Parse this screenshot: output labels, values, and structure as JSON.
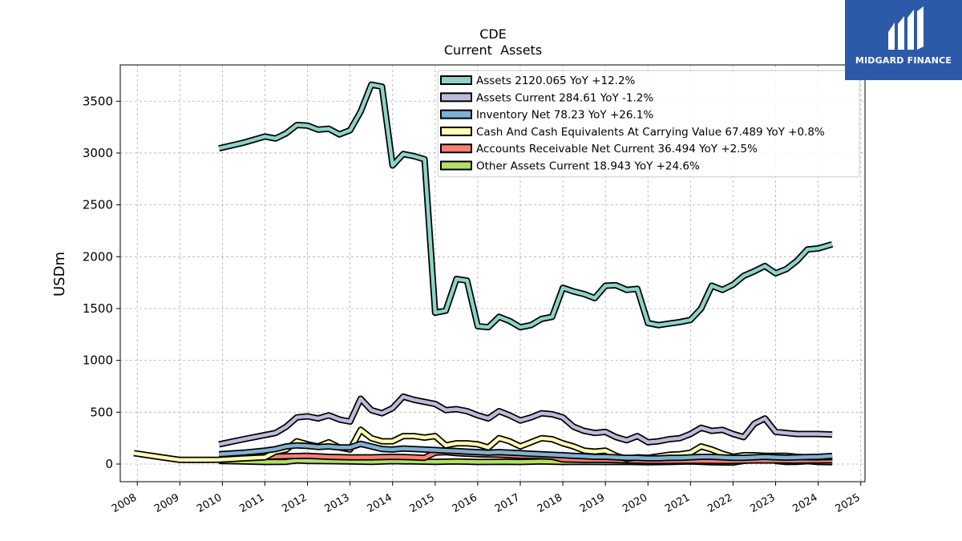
{
  "logo": {
    "text": "MIDGARD FINANCE",
    "bg": "#2c5aa8"
  },
  "chart_data": {
    "type": "line",
    "title": "CDE",
    "subtitle": "Current  Assets",
    "ylabel": "USDm",
    "xlabel": "",
    "xlim": [
      2007.6,
      2025.1
    ],
    "ylim": [
      -170,
      3850
    ],
    "x_ticks": [
      "2008",
      "2009",
      "2010",
      "2011",
      "2012",
      "2013",
      "2014",
      "2015",
      "2016",
      "2017",
      "2018",
      "2019",
      "2020",
      "2021",
      "2022",
      "2023",
      "2024",
      "2025"
    ],
    "y_ticks": [
      "0",
      "500",
      "1000",
      "1500",
      "2000",
      "2500",
      "3000",
      "3500"
    ],
    "grid": true,
    "legend_position": "top-right",
    "series": [
      {
        "name": "Assets",
        "legend": "Assets  2120.065 YoY +12.2%",
        "color": "#8dd3c7",
        "x": [
          2009.92,
          2010.5,
          2011.0,
          2011.25,
          2011.5,
          2011.75,
          2012.0,
          2012.25,
          2012.5,
          2012.75,
          2013.0,
          2013.25,
          2013.5,
          2013.75,
          2014.0,
          2014.25,
          2014.5,
          2014.75,
          2015.0,
          2015.25,
          2015.5,
          2015.75,
          2016.0,
          2016.25,
          2016.5,
          2016.75,
          2017.0,
          2017.25,
          2017.5,
          2017.75,
          2018.0,
          2018.25,
          2018.5,
          2018.75,
          2019.0,
          2019.25,
          2019.5,
          2019.75,
          2020.0,
          2020.25,
          2020.5,
          2020.75,
          2021.0,
          2021.25,
          2021.5,
          2021.75,
          2022.0,
          2022.25,
          2022.5,
          2022.75,
          2023.0,
          2023.25,
          2023.5,
          2023.75,
          2024.0,
          2024.33
        ],
        "values": [
          3045,
          3100,
          3160,
          3140,
          3190,
          3270,
          3265,
          3225,
          3235,
          3180,
          3220,
          3400,
          3660,
          3640,
          2880,
          2990,
          2970,
          2940,
          1460,
          1480,
          1785,
          1770,
          1330,
          1320,
          1420,
          1380,
          1320,
          1340,
          1400,
          1420,
          1700,
          1665,
          1640,
          1600,
          1720,
          1725,
          1680,
          1690,
          1360,
          1340,
          1355,
          1370,
          1390,
          1500,
          1720,
          1680,
          1730,
          1815,
          1860,
          1910,
          1840,
          1880,
          1960,
          2070,
          2080,
          2120
        ]
      },
      {
        "name": "Assets Current",
        "legend": "Assets Current  284.61 YoY -1.2%",
        "color": "#bebada",
        "x": [
          2009.92,
          2010.5,
          2011.0,
          2011.25,
          2011.5,
          2011.75,
          2012.0,
          2012.25,
          2012.5,
          2012.75,
          2013.0,
          2013.25,
          2013.5,
          2013.75,
          2014.0,
          2014.25,
          2014.5,
          2014.75,
          2015.0,
          2015.25,
          2015.5,
          2015.75,
          2016.0,
          2016.25,
          2016.5,
          2016.75,
          2017.0,
          2017.25,
          2017.5,
          2017.75,
          2018.0,
          2018.25,
          2018.5,
          2018.75,
          2019.0,
          2019.25,
          2019.5,
          2019.75,
          2020.0,
          2020.25,
          2020.5,
          2020.75,
          2021.0,
          2021.25,
          2021.5,
          2021.75,
          2022.0,
          2022.25,
          2022.5,
          2022.75,
          2023.0,
          2023.25,
          2023.5,
          2023.75,
          2024.0,
          2024.33
        ],
        "values": [
          190,
          240,
          280,
          300,
          360,
          450,
          460,
          440,
          470,
          430,
          410,
          630,
          520,
          490,
          540,
          650,
          620,
          600,
          580,
          520,
          530,
          510,
          470,
          440,
          510,
          470,
          420,
          450,
          490,
          480,
          450,
          360,
          320,
          300,
          310,
          260,
          230,
          270,
          210,
          220,
          240,
          250,
          290,
          350,
          320,
          330,
          290,
          260,
          390,
          440,
          310,
          300,
          290,
          290,
          290,
          285
        ]
      },
      {
        "name": "Inventory Net",
        "legend": "Inventory Net  78.23 YoY +26.1%",
        "color": "#80b1d3",
        "x": [
          2009.92,
          2010.5,
          2011.0,
          2011.25,
          2011.5,
          2011.75,
          2012.0,
          2012.25,
          2012.5,
          2012.75,
          2013.0,
          2013.25,
          2013.5,
          2013.75,
          2014.0,
          2014.25,
          2014.5,
          2014.75,
          2015.0,
          2015.25,
          2015.5,
          2015.75,
          2016.0,
          2016.25,
          2016.5,
          2016.75,
          2017.0,
          2017.25,
          2017.5,
          2017.75,
          2018.0,
          2018.25,
          2018.5,
          2018.75,
          2019.0,
          2019.25,
          2019.5,
          2019.75,
          2020.0,
          2020.25,
          2020.5,
          2020.75,
          2021.0,
          2021.25,
          2021.5,
          2021.75,
          2022.0,
          2022.25,
          2022.5,
          2022.75,
          2023.0,
          2023.25,
          2023.5,
          2023.75,
          2024.0,
          2024.33
        ],
        "values": [
          95,
          110,
          130,
          145,
          170,
          180,
          175,
          165,
          170,
          160,
          160,
          195,
          170,
          145,
          140,
          150,
          145,
          140,
          135,
          130,
          125,
          120,
          115,
          110,
          115,
          110,
          105,
          100,
          95,
          90,
          85,
          80,
          75,
          70,
          70,
          65,
          60,
          60,
          55,
          55,
          60,
          60,
          65,
          70,
          70,
          65,
          60,
          60,
          65,
          70,
          65,
          62,
          65,
          68,
          70,
          78
        ]
      },
      {
        "name": "Cash And Cash Equivalents At Carrying Value",
        "legend": "Cash And Cash Equivalents At Carrying Value  67.489 YoY +0.8%",
        "color": "#ffffb3",
        "x": [
          2007.92,
          2008.5,
          2009.0,
          2009.5,
          2009.92,
          2010.5,
          2011.0,
          2011.25,
          2011.5,
          2011.75,
          2012.0,
          2012.25,
          2012.5,
          2012.75,
          2013.0,
          2013.25,
          2013.5,
          2013.75,
          2014.0,
          2014.25,
          2014.5,
          2014.75,
          2015.0,
          2015.25,
          2015.5,
          2015.75,
          2016.0,
          2016.25,
          2016.5,
          2016.75,
          2017.0,
          2017.25,
          2017.5,
          2017.75,
          2018.0,
          2018.25,
          2018.5,
          2018.75,
          2019.0,
          2019.25,
          2019.5,
          2019.75,
          2020.0,
          2020.25,
          2020.5,
          2020.75,
          2021.0,
          2021.25,
          2021.5,
          2021.75,
          2022.0,
          2022.25,
          2022.5,
          2022.75,
          2023.0,
          2023.25,
          2023.5,
          2023.75,
          2024.0,
          2024.33
        ],
        "values": [
          105,
          70,
          40,
          40,
          42,
          55,
          65,
          120,
          140,
          220,
          190,
          170,
          210,
          160,
          140,
          330,
          250,
          220,
          220,
          270,
          270,
          255,
          270,
          180,
          200,
          200,
          190,
          160,
          250,
          220,
          170,
          210,
          250,
          240,
          200,
          170,
          130,
          120,
          130,
          80,
          50,
          65,
          60,
          75,
          90,
          95,
          110,
          170,
          140,
          100,
          70,
          85,
          85,
          80,
          80,
          80,
          70,
          65,
          65,
          67
        ]
      },
      {
        "name": "Accounts Receivable Net Current",
        "legend": "Accounts Receivable Net Current  36.494 YoY +2.5%",
        "color": "#fb8072",
        "x": [
          2009.92,
          2010.5,
          2011.0,
          2011.5,
          2012.0,
          2012.5,
          2013.0,
          2013.5,
          2014.0,
          2014.5,
          2014.75,
          2015.0,
          2015.25,
          2015.5,
          2015.75,
          2016.0,
          2016.5,
          2017.0,
          2017.5,
          2017.75,
          2018.0,
          2018.5,
          2019.0,
          2019.5,
          2020.0,
          2020.5,
          2021.0,
          2021.5,
          2022.0,
          2022.5,
          2023.0,
          2023.5,
          2024.0,
          2024.33
        ],
        "values": [
          80,
          75,
          70,
          75,
          80,
          70,
          65,
          65,
          70,
          65,
          60,
          110,
          115,
          105,
          100,
          95,
          90,
          80,
          75,
          70,
          45,
          40,
          40,
          35,
          30,
          30,
          32,
          30,
          30,
          35,
          35,
          33,
          35,
          36
        ]
      },
      {
        "name": "Other Assets Current",
        "legend": "Other Assets Current  18.943 YoY +24.6%",
        "color": "#b3de69",
        "x": [
          2009.92,
          2010.5,
          2011.0,
          2011.5,
          2011.75,
          2012.0,
          2012.5,
          2013.0,
          2013.5,
          2014.0,
          2014.5,
          2015.0,
          2015.5,
          2016.0,
          2016.5,
          2017.0,
          2017.5,
          2018.0,
          2018.5,
          2019.0,
          2019.5,
          2020.0,
          2020.5,
          2021.0,
          2021.5,
          2022.0,
          2022.25,
          2022.5,
          2022.75,
          2023.0,
          2023.25,
          2023.5,
          2023.75,
          2024.0,
          2024.33
        ],
        "values": [
          30,
          25,
          20,
          22,
          35,
          30,
          28,
          25,
          22,
          28,
          25,
          22,
          25,
          20,
          22,
          20,
          25,
          20,
          22,
          20,
          22,
          18,
          20,
          25,
          18,
          15,
          30,
          50,
          70,
          30,
          20,
          22,
          28,
          20,
          19
        ]
      }
    ]
  }
}
